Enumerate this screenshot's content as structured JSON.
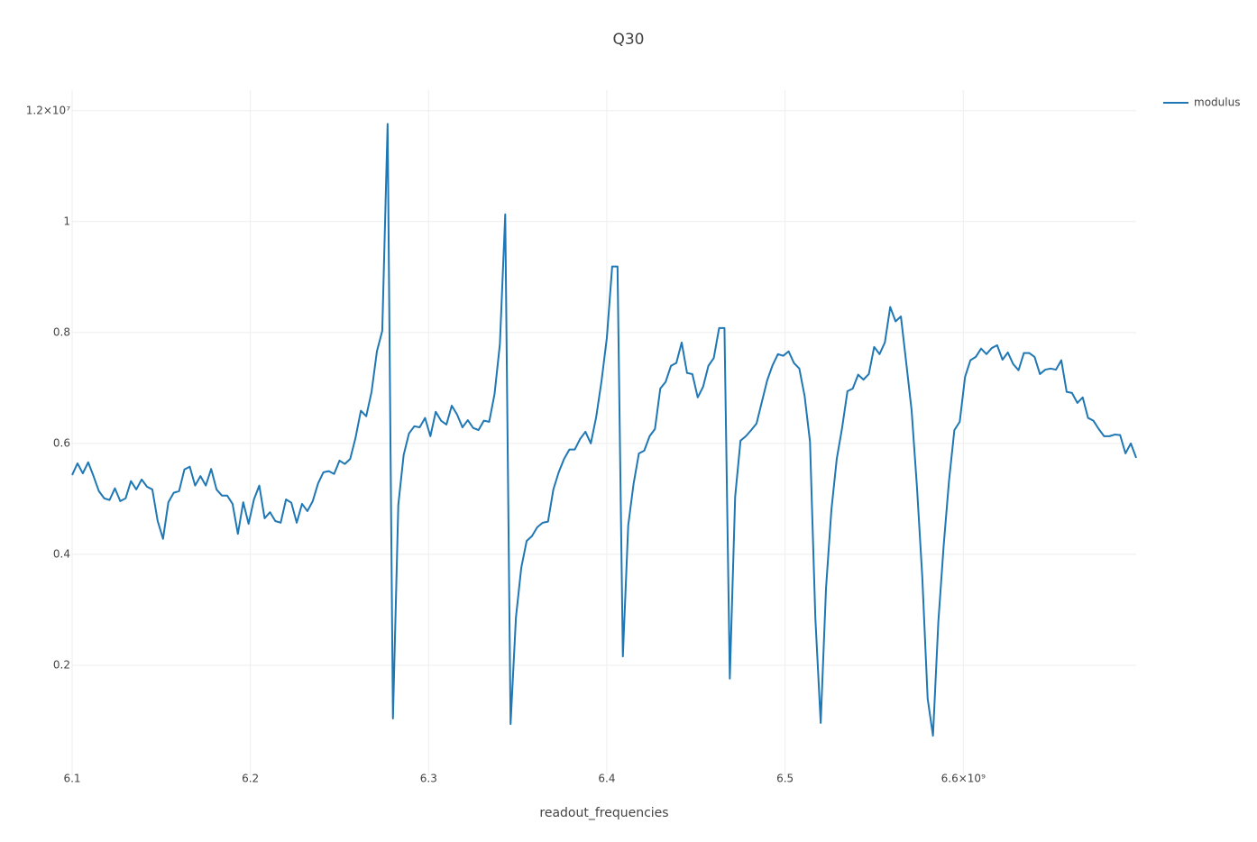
{
  "chart_data": {
    "type": "line",
    "title": "Q30",
    "x_label": "readout_frequencies",
    "x": [
      6100000000.0,
      6103000000.0,
      6106000000.0,
      6109000000.0,
      6112000000.0,
      6115000000.0,
      6118000000.0,
      6121000000.0,
      6124000000.0,
      6127000000.0,
      6130000000.0,
      6133000000.0,
      6136000000.0,
      6139000000.0,
      6142000000.0,
      6145000000.0,
      6148000000.0,
      6151000000.0,
      6154000000.0,
      6157000000.0,
      6160000000.0,
      6163000000.0,
      6166000000.0,
      6169000000.0,
      6172000000.0,
      6175000000.0,
      6178000000.0,
      6181000000.0,
      6184000000.0,
      6187000000.0,
      6190000000.0,
      6193000000.0,
      6196000000.0,
      6199000000.0,
      6202000000.0,
      6205000000.0,
      6208000000.0,
      6211000000.0,
      6214000000.0,
      6217000000.0,
      6220000000.0,
      6223000000.0,
      6226000000.0,
      6229000000.0,
      6232000000.0,
      6235000000.0,
      6238000000.0,
      6241000000.0,
      6244000000.0,
      6247000000.0,
      6250000000.0,
      6253000000.0,
      6256000000.0,
      6259000000.0,
      6262000000.0,
      6265000000.0,
      6268000000.0,
      6271000000.0,
      6274000000.0,
      6277000000.0,
      6280000000.0,
      6283000000.0,
      6286000000.0,
      6289000000.0,
      6292000000.0,
      6295000000.0,
      6298000000.0,
      6301000000.0,
      6304000000.0,
      6307000000.0,
      6310000000.0,
      6313000000.0,
      6316000000.0,
      6319000000.0,
      6322000000.0,
      6325000000.0,
      6328000000.0,
      6331000000.0,
      6334000000.0,
      6337000000.0,
      6340000000.0,
      6343000000.0,
      6346000000.0,
      6349000000.0,
      6352000000.0,
      6355000000.0,
      6358000000.0,
      6361000000.0,
      6364000000.0,
      6367000000.0,
      6370000000.0,
      6373000000.0,
      6376000000.0,
      6379000000.0,
      6382000000.0,
      6385000000.0,
      6388000000.0,
      6391000000.0,
      6394000000.0,
      6397000000.0,
      6400000000.0,
      6403000000.0,
      6406000000.0,
      6409000000.0,
      6412000000.0,
      6415000000.0,
      6418000000.0,
      6421000000.0,
      6424000000.0,
      6427000000.0,
      6430000000.0,
      6433000000.0,
      6436000000.0,
      6439000000.0,
      6442000000.0,
      6445000000.0,
      6448000000.0,
      6451000000.0,
      6454000000.0,
      6457000000.0,
      6460000000.0,
      6463000000.0,
      6466000000.0,
      6469000000.0,
      6472000000.0,
      6475000000.0,
      6478000000.0,
      6481000000.0,
      6484000000.0,
      6487000000.0,
      6490000000.0,
      6493000000.0,
      6496000000.0,
      6499000000.0,
      6502000000.0,
      6505000000.0,
      6508000000.0,
      6511000000.0,
      6514000000.0,
      6517000000.0,
      6520000000.0,
      6523000000.0,
      6526000000.0,
      6529000000.0,
      6532000000.0,
      6535000000.0,
      6538000000.0,
      6541000000.0,
      6544000000.0,
      6547000000.0,
      6550000000.0,
      6553000000.0,
      6556000000.0,
      6559000000.0,
      6562000000.0,
      6565000000.0,
      6568000000.0,
      6571000000.0,
      6574000000.0,
      6577000000.0,
      6580000000.0,
      6583000000.0,
      6586000000.0,
      6589000000.0,
      6592000000.0,
      6595000000.0,
      6598000000.0,
      6601000000.0,
      6604000000.0,
      6607000000.0,
      6610000000.0,
      6613000000.0,
      6616000000.0,
      6619000000.0,
      6622000000.0,
      6625000000.0,
      6628000000.0,
      6631000000.0,
      6634000000.0,
      6637000000.0,
      6640000000.0,
      6643000000.0,
      6646000000.0,
      6649000000.0,
      6652000000.0,
      6655000000.0,
      6658000000.0,
      6661000000.0,
      6664000000.0,
      6667000000.0,
      6670000000.0,
      6673000000.0,
      6676000000.0,
      6679000000.0,
      6682000000.0,
      6685000000.0,
      6688000000.0,
      6691000000.0,
      6694000000.0,
      6697000000.0
    ],
    "series": [
      {
        "name": "modulus",
        "color": "#1f77b4",
        "values": [
          5430000.0,
          5640000.0,
          5460000.0,
          5660000.0,
          5410000.0,
          5140000.0,
          5010000.0,
          4980000.0,
          5190000.0,
          4960000.0,
          5010000.0,
          5320000.0,
          5170000.0,
          5350000.0,
          5220000.0,
          5170000.0,
          4600000.0,
          4280000.0,
          4940000.0,
          5110000.0,
          5140000.0,
          5530000.0,
          5580000.0,
          5240000.0,
          5410000.0,
          5240000.0,
          5540000.0,
          5170000.0,
          5060000.0,
          5060000.0,
          4910000.0,
          4370000.0,
          4940000.0,
          4550000.0,
          4990000.0,
          5240000.0,
          4650000.0,
          4760000.0,
          4600000.0,
          4570000.0,
          4990000.0,
          4930000.0,
          4570000.0,
          4910000.0,
          4780000.0,
          4960000.0,
          5280000.0,
          5480000.0,
          5500000.0,
          5450000.0,
          5690000.0,
          5630000.0,
          5720000.0,
          6100000.0,
          6590000.0,
          6490000.0,
          6930000.0,
          7660000.0,
          8030000.0,
          11760000.0,
          1040000.0,
          4890000.0,
          5790000.0,
          6180000.0,
          6310000.0,
          6290000.0,
          6460000.0,
          6130000.0,
          6570000.0,
          6410000.0,
          6340000.0,
          6680000.0,
          6520000.0,
          6290000.0,
          6420000.0,
          6280000.0,
          6240000.0,
          6410000.0,
          6390000.0,
          6890000.0,
          7790000.0,
          10130000.0,
          940000.0,
          2860000.0,
          3760000.0,
          4240000.0,
          4330000.0,
          4490000.0,
          4570000.0,
          4590000.0,
          5170000.0,
          5480000.0,
          5720000.0,
          5890000.0,
          5890000.0,
          6080000.0,
          6210000.0,
          6000000.0,
          6470000.0,
          7120000.0,
          7900000.0,
          9190000.0,
          9190000.0,
          2160000.0,
          4520000.0,
          5270000.0,
          5820000.0,
          5870000.0,
          6130000.0,
          6260000.0,
          6990000.0,
          7110000.0,
          7400000.0,
          7450000.0,
          7820000.0,
          7270000.0,
          7250000.0,
          6830000.0,
          7020000.0,
          7400000.0,
          7540000.0,
          8080000.0,
          8080000.0,
          1760000.0,
          5040000.0,
          6050000.0,
          6130000.0,
          6240000.0,
          6360000.0,
          6750000.0,
          7140000.0,
          7410000.0,
          7610000.0,
          7580000.0,
          7660000.0,
          7450000.0,
          7350000.0,
          6850000.0,
          6030000.0,
          2850000.0,
          960000.0,
          3400000.0,
          4800000.0,
          5720000.0,
          6280000.0,
          6940000.0,
          6990000.0,
          7240000.0,
          7150000.0,
          7250000.0,
          7740000.0,
          7610000.0,
          7820000.0,
          8460000.0,
          8200000.0,
          8290000.0,
          7450000.0,
          6600000.0,
          5220000.0,
          3590000.0,
          1400000.0,
          730000.0,
          2780000.0,
          4160000.0,
          5330000.0,
          6240000.0,
          6390000.0,
          7200000.0,
          7500000.0,
          7560000.0,
          7710000.0,
          7610000.0,
          7720000.0,
          7770000.0,
          7510000.0,
          7640000.0,
          7430000.0,
          7320000.0,
          7630000.0,
          7630000.0,
          7560000.0,
          7250000.0,
          7330000.0,
          7350000.0,
          7330000.0,
          7500000.0,
          6930000.0,
          6910000.0,
          6730000.0,
          6830000.0,
          6460000.0,
          6410000.0,
          6260000.0,
          6130000.0,
          6130000.0,
          6160000.0,
          6150000.0,
          5820000.0,
          6000000.0,
          5740000.0
        ]
      }
    ],
    "xlim": [
      6100000000.0,
      6697000000.0
    ],
    "ylim": [
      16000,
      12370000
    ],
    "xticks": [
      {
        "value": 6100000000.0,
        "label": "6.1"
      },
      {
        "value": 6200000000.0,
        "label": "6.2"
      },
      {
        "value": 6300000000.0,
        "label": "6.3"
      },
      {
        "value": 6400000000.0,
        "label": "6.4"
      },
      {
        "value": 6500000000.0,
        "label": "6.5"
      },
      {
        "value": 6600000000.0,
        "label": "6.6×10⁹"
      }
    ],
    "yticks": [
      {
        "value": 2000000,
        "label": "0.2"
      },
      {
        "value": 4000000,
        "label": "0.4"
      },
      {
        "value": 6000000,
        "label": "0.6"
      },
      {
        "value": 8000000,
        "label": "0.8"
      },
      {
        "value": 10000000,
        "label": "1"
      },
      {
        "value": 12000000,
        "label": "1.2×10⁷"
      }
    ],
    "grid": true
  }
}
